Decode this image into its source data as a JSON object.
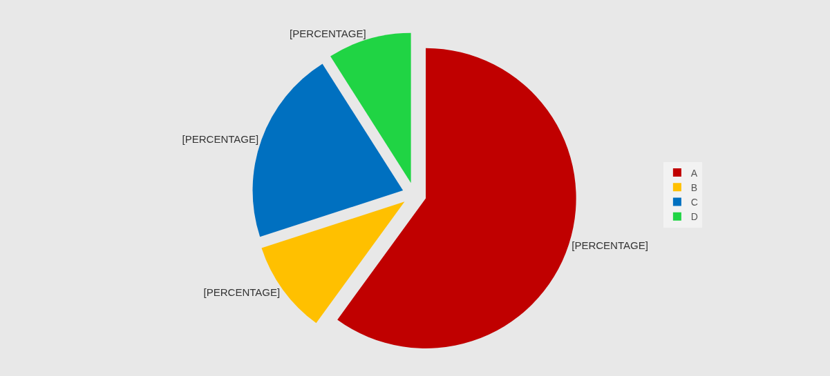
{
  "chart_data": {
    "type": "pie",
    "categories": [
      "A",
      "B",
      "C",
      "D"
    ],
    "values": [
      60,
      10,
      21,
      9
    ],
    "colors": [
      "#c00000",
      "#ffc000",
      "#0070c0",
      "#20d444"
    ],
    "value_labels": [
      "[PERCENTAGE]",
      "[PERCENTAGE]",
      "[PERCENTAGE]",
      "[PERCENTAGE]"
    ],
    "legend": "right"
  }
}
